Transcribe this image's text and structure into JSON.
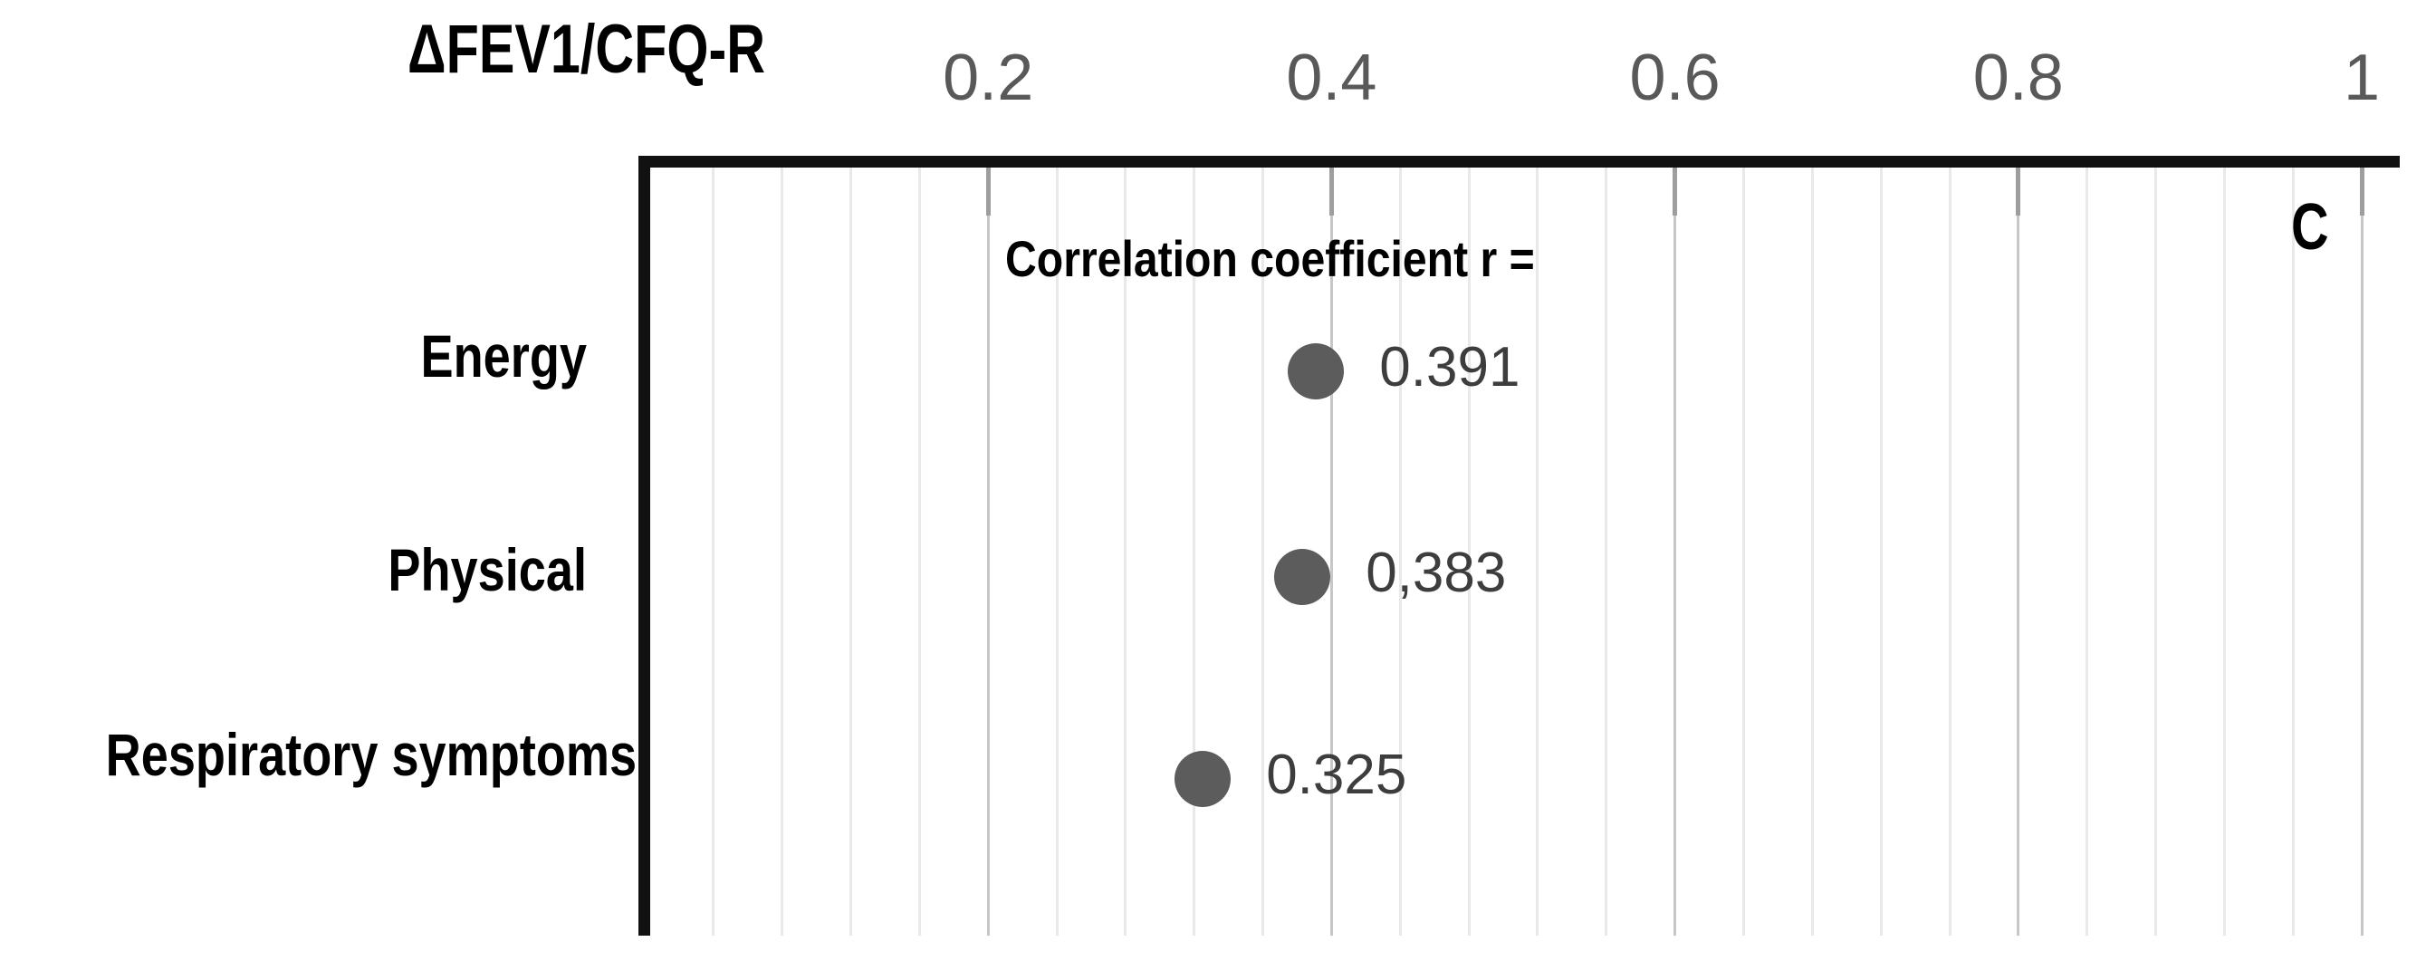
{
  "chart_data": {
    "type": "scatter",
    "subtype": "horizontal-dot-plot",
    "title": "ΔFEV1/CFQ-R",
    "panel_label": "C",
    "annotation": "Correlation coefficient r =",
    "categories": [
      "Energy",
      "Physical",
      "Respiratory symptoms"
    ],
    "values": [
      0.391,
      0.383,
      0.325
    ],
    "value_labels": [
      "0.391",
      "0,383",
      "0.325"
    ],
    "x_axis": {
      "position": "top",
      "range": [
        0,
        1.022
      ],
      "major_unit": 0.2,
      "minor_unit": 0.04,
      "ticks": [
        {
          "label": "0.2",
          "value": 0.2
        },
        {
          "label": "0.4",
          "value": 0.4
        },
        {
          "label": "0.6",
          "value": 0.6
        },
        {
          "label": "0.8",
          "value": 0.8
        },
        {
          "label": "1",
          "value": 1.0
        }
      ],
      "grid": true
    },
    "legend": "none",
    "colors": {
      "background": "#ffffff",
      "axis_line": "#111111",
      "major_gridline": "#c7c7c7",
      "minor_gridline": "#e9e9e9",
      "tick_mark": "#9e9e9e",
      "tick_label_text": "#595959",
      "dot_fill": "#5c5c5c",
      "value_label_text": "#3d3d3d",
      "category_label_text": "#000000"
    }
  }
}
